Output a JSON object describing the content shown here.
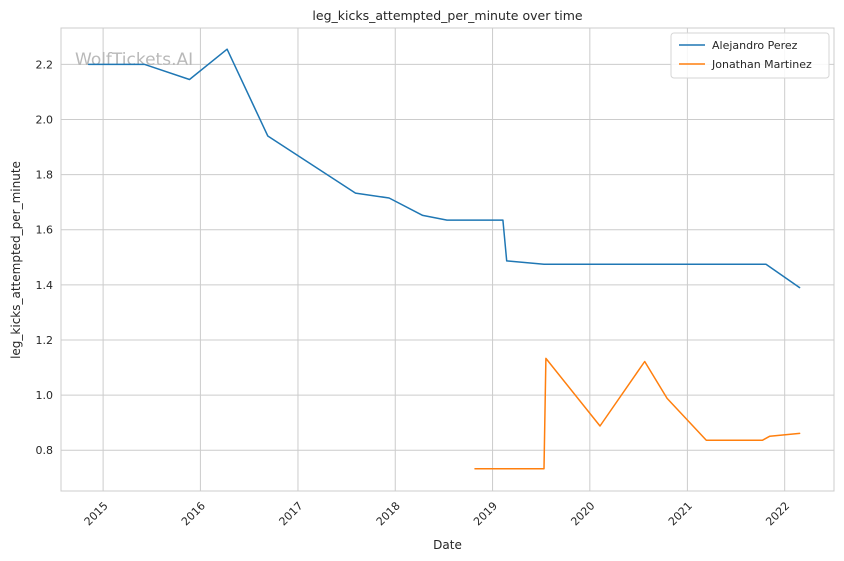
{
  "chart_data": {
    "type": "line",
    "title": "leg_kicks_attempted_per_minute over time",
    "xlabel": "Date",
    "ylabel": "leg_kicks_attempted_per_minute",
    "watermark": "WolfTickets.AI",
    "xlim": [
      "2014-07-27",
      "2022-07-05"
    ],
    "ylim": [
      0.652,
      2.332
    ],
    "x_ticks": [
      "2015-01-01",
      "2016-01-01",
      "2017-01-01",
      "2018-01-01",
      "2019-01-01",
      "2020-01-01",
      "2021-01-01",
      "2022-01-01"
    ],
    "x_tick_labels": [
      "2015",
      "2016",
      "2017",
      "2018",
      "2019",
      "2020",
      "2021",
      "2022"
    ],
    "y_ticks": [
      0.8,
      1.0,
      1.2,
      1.4,
      1.6,
      1.8,
      2.0,
      2.2
    ],
    "y_tick_labels": [
      "0.8",
      "1.0",
      "1.2",
      "1.4",
      "1.6",
      "1.8",
      "2.0",
      "2.2"
    ],
    "grid": true,
    "legend_position": "top-right",
    "series": [
      {
        "name": "Alejandro Perez",
        "color": "#1f77b4",
        "points": [
          [
            "2014-11-08",
            2.2
          ],
          [
            "2015-06-06",
            2.2
          ],
          [
            "2015-11-21",
            2.145
          ],
          [
            "2016-04-10",
            2.255
          ],
          [
            "2016-09-10",
            1.94
          ],
          [
            "2017-08-05",
            1.733
          ],
          [
            "2017-12-09",
            1.715
          ],
          [
            "2018-04-14",
            1.652
          ],
          [
            "2018-07-14",
            1.635
          ],
          [
            "2019-02-09",
            1.635
          ],
          [
            "2019-02-23",
            1.487
          ],
          [
            "2019-07-13",
            1.475
          ],
          [
            "2021-10-23",
            1.475
          ],
          [
            "2022-02-26",
            1.39
          ]
        ]
      },
      {
        "name": "Jonathan Martinez",
        "color": "#ff7f0e",
        "points": [
          [
            "2018-10-27",
            0.733
          ],
          [
            "2019-07-13",
            0.733
          ],
          [
            "2019-07-20",
            1.133
          ],
          [
            "2020-02-08",
            0.888
          ],
          [
            "2020-07-25",
            1.122
          ],
          [
            "2020-10-17",
            0.988
          ],
          [
            "2021-03-13",
            0.836
          ],
          [
            "2021-10-09",
            0.836
          ],
          [
            "2021-11-06",
            0.851
          ],
          [
            "2022-02-26",
            0.861
          ]
        ]
      }
    ]
  }
}
